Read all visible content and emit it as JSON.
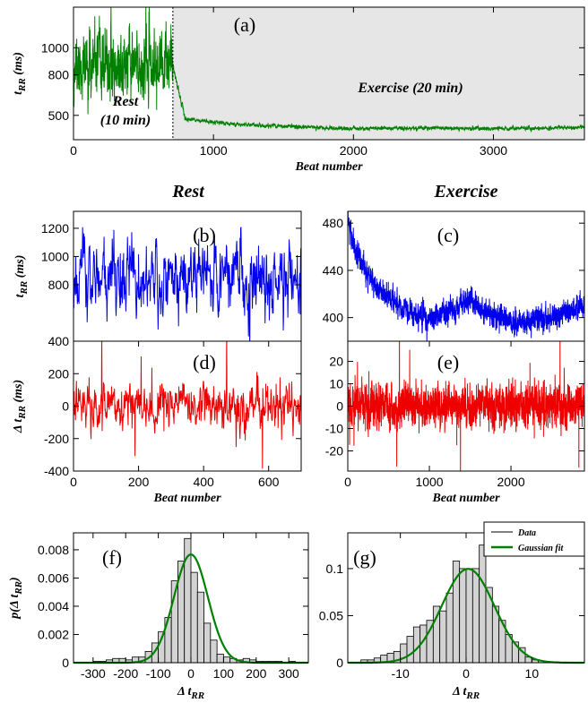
{
  "figure": {
    "column_titles": {
      "rest": "Rest",
      "exercise": "Exercise"
    },
    "colors": {
      "green": "#008000",
      "blue": "#0000ee",
      "red": "#ee0000",
      "shade": "#e6e6e6",
      "hist_fill": "#d3d3d3"
    }
  },
  "chart_data": [
    {
      "id": "a",
      "type": "line",
      "panel_label": "(a)",
      "xlabel": "Beat number",
      "ylabel_main": "t",
      "ylabel_sub": "RR",
      "ylabel_unit": "(ms)",
      "xlim": [
        0,
        3650
      ],
      "ylim": [
        320,
        1300
      ],
      "xticks": [
        0,
        1000,
        2000,
        3000
      ],
      "yticks": [
        500,
        800,
        1000
      ],
      "series": [
        {
          "color": "#008000",
          "segments": [
            {
              "x0": 0,
              "x1": 710,
              "mean": 860,
              "sd": 120,
              "seed": 11
            },
            {
              "x0": 710,
              "x1": 800,
              "start": 860,
              "end": 470,
              "sd": 12,
              "seed": 12
            },
            {
              "x0": 800,
              "x1": 3650,
              "trend": [
                [
                  800,
                  470
                ],
                [
                  1200,
                  430
                ],
                [
                  2000,
                  402
                ],
                [
                  2500,
                  408
                ],
                [
                  3000,
                  402
                ],
                [
                  3650,
                  412
                ]
              ],
              "sd": 7,
              "seed": 13
            }
          ]
        }
      ],
      "shaded_region": [
        710,
        3650
      ],
      "divider_x": 710,
      "annotations": {
        "rest_line1": "Rest",
        "rest_line2": "(10 min)",
        "exercise": "Exercise (20 min)"
      }
    },
    {
      "id": "b",
      "type": "line",
      "panel_label": "(b)",
      "ylabel_main": "t",
      "ylabel_sub": "RR",
      "ylabel_unit": "(ms)",
      "xlim": [
        0,
        700
      ],
      "ylim": [
        400,
        1320
      ],
      "yticks": [
        800,
        1000,
        1200
      ],
      "series": [
        {
          "color": "#0000ee",
          "segments": [
            {
              "x0": 0,
              "x1": 700,
              "mean": 850,
              "sd": 140,
              "seed": 21
            }
          ]
        }
      ]
    },
    {
      "id": "c",
      "type": "line",
      "panel_label": "(c)",
      "xlim": [
        0,
        2900
      ],
      "ylim": [
        380,
        490
      ],
      "yticks": [
        400,
        440,
        480
      ],
      "series": [
        {
          "color": "#0000ee",
          "segments": [
            {
              "x0": 0,
              "x1": 2900,
              "trend": [
                [
                  0,
                  483
                ],
                [
                  100,
                  455
                ],
                [
                  300,
                  430
                ],
                [
                  600,
                  412
                ],
                [
                  800,
                  403
                ],
                [
                  1000,
                  398
                ],
                [
                  1200,
                  405
                ],
                [
                  1400,
                  410
                ],
                [
                  1500,
                  418
                ],
                [
                  1600,
                  408
                ],
                [
                  1900,
                  398
                ],
                [
                  2100,
                  396
                ],
                [
                  2400,
                  398
                ],
                [
                  2600,
                  403
                ],
                [
                  2900,
                  410
                ]
              ],
              "sd": 5,
              "seed": 31
            }
          ]
        }
      ]
    },
    {
      "id": "d",
      "type": "line",
      "panel_label": "(d)",
      "xlabel": "Beat number",
      "ylabel_main": "Δ t",
      "ylabel_sub": "RR",
      "ylabel_unit": "(ms)",
      "xlim": [
        0,
        700
      ],
      "ylim": [
        -400,
        400
      ],
      "xticks": [
        0,
        200,
        400,
        600
      ],
      "yticks": [
        -400,
        -200,
        0,
        200,
        400
      ],
      "series": [
        {
          "color": "#ee0000",
          "segments": [
            {
              "x0": 0,
              "x1": 700,
              "mean": 0,
              "sd": 70,
              "seed": 41,
              "spikes": 0.06
            }
          ]
        }
      ]
    },
    {
      "id": "e",
      "type": "line",
      "panel_label": "(e)",
      "xlabel": "Beat number",
      "xlim": [
        0,
        2900
      ],
      "ylim": [
        -29,
        29
      ],
      "xticks": [
        0,
        1000,
        2000
      ],
      "yticks": [
        -20,
        -10,
        0,
        10,
        20
      ],
      "series": [
        {
          "color": "#ee0000",
          "segments": [
            {
              "x0": 0,
              "x1": 2900,
              "mean": 0,
              "sd": 4.5,
              "seed": 51,
              "spikes": 0.01
            }
          ]
        }
      ]
    },
    {
      "id": "f",
      "type": "bar",
      "panel_label": "(f)",
      "xlabel_main": "Δ t",
      "xlabel_sub": "RR",
      "ylabel_main": "p(Δ t",
      "ylabel_sub": "RR",
      "ylabel_tail": ")",
      "xlim": [
        -360,
        360
      ],
      "ylim": [
        0,
        0.0092
      ],
      "xticks": [
        -300,
        -200,
        -100,
        0,
        100,
        200,
        300
      ],
      "yticks": [
        0,
        0.002,
        0.004,
        0.006,
        0.008
      ],
      "bin_start": -320,
      "bin_width": 20,
      "values": [
        0,
        0.0001,
        0.0001,
        0.0002,
        0.0003,
        0.0003,
        0.0002,
        0.0004,
        0.0004,
        0.0008,
        0.0014,
        0.0022,
        0.0032,
        0.0058,
        0.0072,
        0.0088,
        0.0064,
        0.005,
        0.0028,
        0.0016,
        0.0006,
        0.0004,
        0.0003,
        0.0002,
        0.0003,
        0.0002,
        0.0001,
        0.0001,
        0.0001,
        0.0001,
        0,
        0.0001
      ],
      "fit": {
        "mean": 0,
        "sd": 52,
        "color": "#008000"
      }
    },
    {
      "id": "g",
      "type": "bar",
      "panel_label": "(g)",
      "xlabel_main": "Δ t",
      "xlabel_sub": "RR",
      "xlim": [
        -18,
        18
      ],
      "ylim": [
        0,
        0.138
      ],
      "xticks": [
        -10,
        0,
        10
      ],
      "yticks": [
        0,
        0.05,
        0.1
      ],
      "bin_start": -16,
      "bin_width": 1,
      "values": [
        0.003,
        0.003,
        0.005,
        0.008,
        0.01,
        0.012,
        0.02,
        0.028,
        0.038,
        0.04,
        0.045,
        0.06,
        0.055,
        0.074,
        0.108,
        0.1,
        0.1,
        0.1,
        0.125,
        0.08,
        0.06,
        0.045,
        0.03,
        0.022,
        0.016,
        0.006,
        0.003,
        0.002,
        0.001,
        0.001,
        0.0005,
        0.0005
      ],
      "fit": {
        "mean": 0.3,
        "sd": 4,
        "color": "#008000"
      },
      "legend": {
        "position": "top-right",
        "items": [
          "Data",
          "Gaussian fit"
        ]
      }
    }
  ]
}
